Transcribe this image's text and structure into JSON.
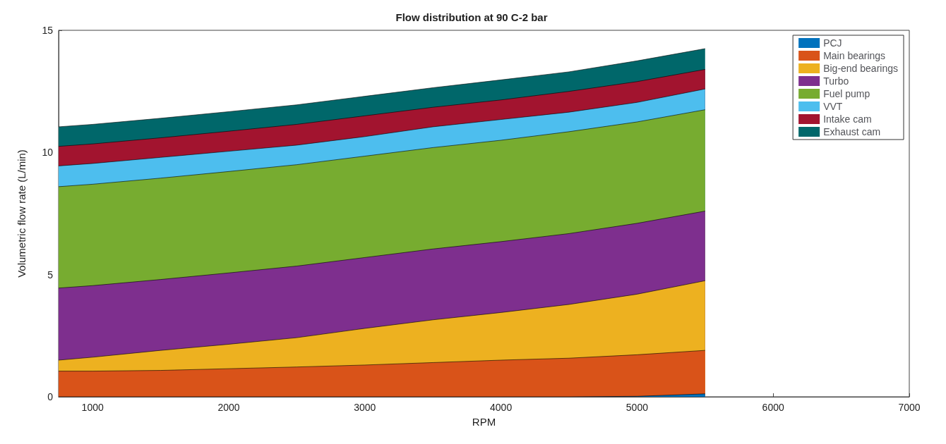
{
  "chart_data": {
    "type": "area",
    "stacked": true,
    "title": "Flow distribution at 90 C-2 bar",
    "xlabel": "RPM",
    "ylabel": "Volumetric flow rate (L/min)",
    "x": [
      750,
      1000,
      1500,
      2000,
      2500,
      3000,
      3500,
      4000,
      4500,
      5000,
      5500
    ],
    "xlim": [
      750,
      7000
    ],
    "xticks": [
      1000,
      2000,
      3000,
      4000,
      5000,
      6000,
      7000
    ],
    "ylim": [
      0,
      15
    ],
    "yticks": [
      0,
      5,
      10,
      15
    ],
    "grid": false,
    "legend": "top right",
    "marker": "none",
    "line_style": "solid",
    "series": [
      {
        "name": "PCJ",
        "color": "#0072bd",
        "values": [
          0,
          0,
          0,
          0,
          0,
          0,
          0,
          0,
          0,
          0.02,
          0.12
        ]
      },
      {
        "name": "Main bearings",
        "color": "#d95319",
        "values": [
          1.05,
          1.05,
          1.08,
          1.15,
          1.22,
          1.3,
          1.4,
          1.5,
          1.58,
          1.7,
          1.78
        ]
      },
      {
        "name": "Big-end bearings",
        "color": "#edb120",
        "values": [
          0.45,
          0.57,
          0.82,
          1.0,
          1.2,
          1.5,
          1.75,
          1.95,
          2.2,
          2.48,
          2.85
        ]
      },
      {
        "name": "Turbo",
        "color": "#7e2f8e",
        "values": [
          2.95,
          2.93,
          2.9,
          2.92,
          2.93,
          2.9,
          2.9,
          2.9,
          2.9,
          2.9,
          2.85
        ]
      },
      {
        "name": "Fuel pump",
        "color": "#77ac30",
        "values": [
          4.15,
          4.15,
          4.15,
          4.15,
          4.15,
          4.15,
          4.15,
          4.15,
          4.17,
          4.15,
          4.15
        ]
      },
      {
        "name": "VVT",
        "color": "#4dbeee",
        "values": [
          0.85,
          0.85,
          0.85,
          0.83,
          0.8,
          0.8,
          0.85,
          0.85,
          0.8,
          0.8,
          0.85
        ]
      },
      {
        "name": "Intake cam",
        "color": "#a2142f",
        "values": [
          0.8,
          0.8,
          0.8,
          0.82,
          0.85,
          0.85,
          0.8,
          0.8,
          0.85,
          0.85,
          0.8
        ]
      },
      {
        "name": "Exhaust cam",
        "color": "#00676a",
        "values": [
          0.8,
          0.8,
          0.8,
          0.8,
          0.8,
          0.8,
          0.8,
          0.82,
          0.8,
          0.85,
          0.85
        ]
      }
    ]
  }
}
